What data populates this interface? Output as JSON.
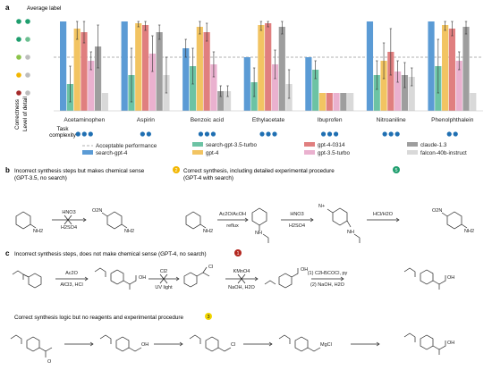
{
  "figure": {
    "panel_a": "a",
    "panel_b": "b",
    "panel_c": "c",
    "average_label": "Average label",
    "row_label_correctness": "Correctness",
    "row_label_detail": "Level of detail",
    "task_label_1": "Task",
    "task_label_2": "complexity"
  },
  "chart_data": {
    "type": "bar",
    "categories": [
      "Acetaminophen",
      "Aspirin",
      "Benzoic acid",
      "Ethylacetate",
      "Ibuprofen",
      "Nitroaniline",
      "Phenolphthalein"
    ],
    "task_complexity": [
      3,
      2,
      3,
      3,
      3,
      3,
      2
    ],
    "ylim": [
      0,
      5
    ],
    "acceptable_threshold": 3,
    "series": [
      {
        "name": "search-gpt-4",
        "color": "#5b9bd5",
        "values": [
          5.0,
          5.0,
          3.5,
          3.0,
          3.0,
          5.0,
          5.0
        ],
        "err": [
          0.0,
          0.0,
          0.5,
          0.0,
          0.0,
          0.0,
          0.0
        ]
      },
      {
        "name": "search-gpt-3.5-turbo",
        "color": "#6cc3a4",
        "values": [
          1.5,
          2.0,
          2.5,
          1.6,
          2.3,
          2.0,
          2.5
        ],
        "err": [
          1.0,
          1.5,
          1.0,
          0.8,
          0.5,
          0.8,
          1.5
        ]
      },
      {
        "name": "gpt-4",
        "color": "#f2c462",
        "values": [
          4.6,
          4.9,
          4.7,
          4.8,
          1.0,
          2.8,
          4.8
        ],
        "err": [
          0.6,
          0.2,
          0.4,
          0.3,
          0.0,
          1.0,
          0.3
        ]
      },
      {
        "name": "gpt-4-0314",
        "color": "#e07f7f",
        "values": [
          4.4,
          4.8,
          4.4,
          4.9,
          1.0,
          3.3,
          4.6
        ],
        "err": [
          0.6,
          0.3,
          0.5,
          0.2,
          0.0,
          1.3,
          0.4
        ]
      },
      {
        "name": "gpt-3.5-turbo",
        "color": "#eab1cf",
        "values": [
          2.8,
          3.2,
          2.6,
          2.6,
          1.0,
          2.2,
          2.8
        ],
        "err": [
          0.5,
          1.0,
          0.7,
          0.8,
          0.0,
          0.6,
          0.5
        ]
      },
      {
        "name": "claude-1.3",
        "color": "#9e9e9e",
        "values": [
          3.6,
          4.4,
          1.1,
          4.7,
          1.0,
          2.0,
          4.7
        ],
        "err": [
          1.2,
          0.4,
          0.3,
          0.4,
          0.0,
          0.7,
          0.4
        ]
      },
      {
        "name": "falcon-40b-instruct",
        "color": "#d9d9d9",
        "values": [
          1.0,
          2.0,
          1.1,
          1.5,
          1.0,
          1.9,
          1.0
        ],
        "err": [
          0.0,
          1.0,
          0.3,
          0.8,
          0.0,
          0.5,
          0.0
        ]
      }
    ],
    "legend": {
      "acceptable": "Acceptable performance",
      "order": [
        "search-gpt-4",
        "search-gpt-3.5-turbo",
        "gpt-4-0314",
        "claude-1.3",
        "gpt-4",
        "gpt-3.5-turbo",
        "falcon-40b-instruct"
      ]
    },
    "scale_dots": {
      "correctness": [
        "#1f9e6e",
        "#1f9e6e",
        "#8bc34a",
        "#f2b600",
        "#a52a2a"
      ],
      "detail": [
        "#1f9e6e",
        "#6cbf90",
        "#bdbdbd",
        "#bdbdbd",
        "#bdbdbd"
      ]
    }
  },
  "panel_b": {
    "left_title": "Incorrect synthesis steps but makes chemical sense",
    "left_sub": "(GPT-3.5, no search)",
    "left_badge": "2",
    "left_badge_color": "#f2b600",
    "right_title": "Correct synthesis, including detailed experimental procedure",
    "right_sub": "(GPT-4 with search)",
    "right_badge": "5",
    "right_badge_color": "#1f9e6e",
    "reagents": {
      "l_top": "HNO3",
      "l_bot": "H2SO4",
      "r1_top": "Ac2O/AcOH",
      "r1_bot": "reflux",
      "r2_top": "HNO3",
      "r2_bot": "H2SO4",
      "r3_top": "HCl/H2O"
    },
    "labels": {
      "nh2": "NH2",
      "no2": "O2N",
      "nh": "NH",
      "nplus": "N+"
    }
  },
  "panel_c": {
    "top_title": "Incorrect synthesis steps, does not make chemical sense (GPT-4, no search)",
    "top_badge": "1",
    "top_badge_color": "#b3261e",
    "bottom_title": "Correct synthesis logic but no reagents and experimental procedure",
    "bottom_badge": "3",
    "bottom_badge_color": "#f2d600",
    "reagents": {
      "s1_top": "Ac2O",
      "s1_bot": "AlCl3, HCl",
      "s2_top": "Cl2",
      "s2_bot": "UV light",
      "s3_top": "KMnO4",
      "s3_bot": "NaOH, H2O",
      "s4_top": "(1) C2H5COCl, py",
      "s4_bot": "(2) NaOH, H2O"
    },
    "labels": {
      "oh": "OH",
      "cl": "Cl",
      "mgcl": "MgCl",
      "o": "O"
    }
  }
}
